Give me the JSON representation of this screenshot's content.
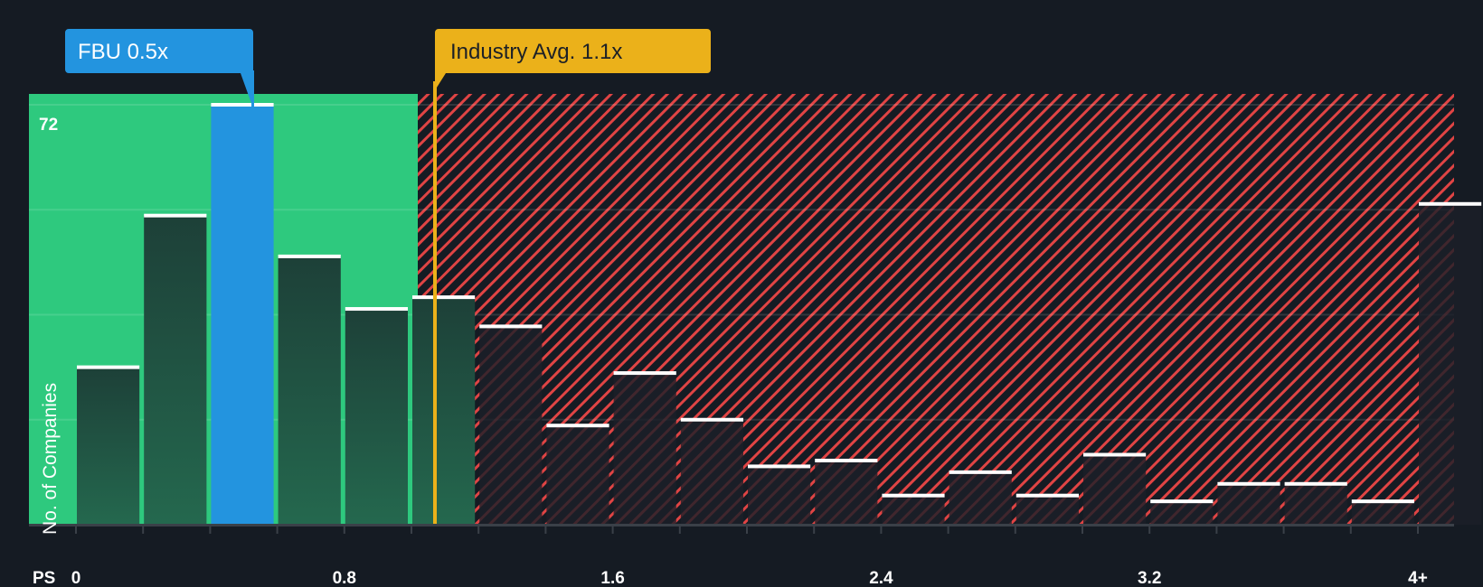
{
  "chart_data": {
    "type": "bar",
    "title": "",
    "xlabel": "PS",
    "ylabel": "No. of Companies",
    "ylim": [
      0,
      72
    ],
    "y_max_label": "72",
    "x_tick_labels": [
      "0",
      "0.8",
      "1.6",
      "2.4",
      "3.2",
      "4+"
    ],
    "bin_width": 0.2,
    "categories": [
      "0-0.2",
      "0.2-0.4",
      "0.4-0.6",
      "0.6-0.8",
      "0.8-1.0",
      "1.0-1.2",
      "1.2-1.4",
      "1.4-1.6",
      "1.6-1.8",
      "1.8-2.0",
      "2.0-2.2",
      "2.2-2.4",
      "2.4-2.6",
      "2.6-2.8",
      "2.8-3.0",
      "3.0-3.2",
      "3.2-3.4",
      "3.4-3.6",
      "3.6-3.8",
      "3.8-4.0",
      "4+"
    ],
    "values": [
      27,
      53,
      72,
      46,
      37,
      39,
      34,
      17,
      26,
      18,
      10,
      11,
      5,
      9,
      5,
      12,
      4,
      7,
      7,
      4,
      55
    ],
    "highlight_index": 2,
    "grid": true,
    "annotations": [
      {
        "label": "FBU 0.5x",
        "x": 0.5,
        "color": "#2394df"
      },
      {
        "label": "Industry Avg. 1.1x",
        "x": 1.1,
        "color": "#ebb11a"
      }
    ],
    "regions": [
      {
        "name": "undervalued",
        "from": 0,
        "to": 1.1,
        "color": "#2ec97e"
      },
      {
        "name": "overvalued",
        "from": 1.1,
        "to": "4+",
        "color": "#e04444",
        "pattern": "diagonal-hatch"
      }
    ]
  },
  "labels": {
    "company": "FBU 0.5x",
    "industry": "Industry Avg. 1.1x",
    "y_max": "72",
    "y_axis": "No. of Companies",
    "x_axis": "PS"
  },
  "colors": {
    "background": "#151b23",
    "green": "#2ec97e",
    "blue": "#2394df",
    "gold": "#ebb11a",
    "red_hatch": "#e04444",
    "bar_dark": "#1f4a3e"
  }
}
